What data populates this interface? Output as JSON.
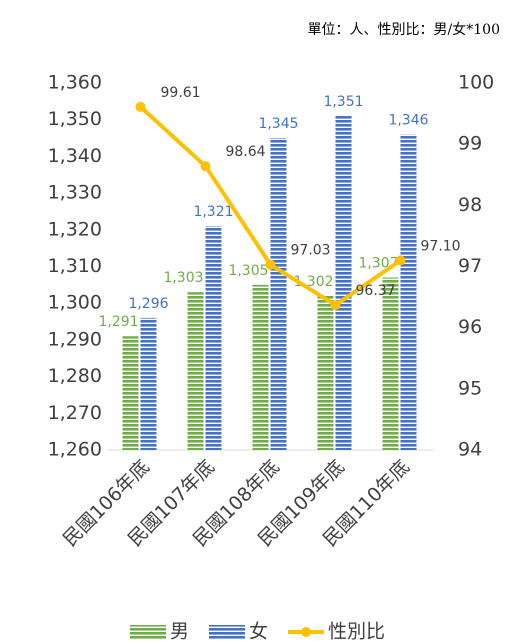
{
  "chart_data": {
    "type": "bar_line",
    "note": "單位：人、性別比：男/女*100",
    "categories": [
      "民國106年底",
      "民國107年底",
      "民國108年底",
      "民國109年底",
      "民國110年底"
    ],
    "series": [
      {
        "name": "男",
        "color": "#70ad47",
        "values": [
          1291,
          1303,
          1305,
          1302,
          1307
        ],
        "value_labels": [
          "1,291",
          "1,303",
          "1,305",
          "1,302",
          "1,307"
        ]
      },
      {
        "name": "女",
        "color": "#4472c4",
        "values": [
          1296,
          1321,
          1345,
          1351,
          1346
        ],
        "value_labels": [
          "1,296",
          "1,321",
          "1,345",
          "1,351",
          "1,346"
        ]
      },
      {
        "name": "性別比",
        "color": "#ffc000",
        "axis": "y2",
        "values": [
          99.61,
          98.64,
          97.03,
          96.37,
          97.1
        ],
        "value_labels": [
          "99.61",
          "98.64",
          "97.03",
          "96.37",
          "97.10"
        ]
      }
    ],
    "ylim": [
      1260,
      1360
    ],
    "yticks": [
      {
        "value": 1260,
        "label": "1,260"
      },
      {
        "value": 1270,
        "label": "1,270"
      },
      {
        "value": 1280,
        "label": "1,280"
      },
      {
        "value": 1290,
        "label": "1,290"
      },
      {
        "value": 1300,
        "label": "1,300"
      },
      {
        "value": 1310,
        "label": "1,310"
      },
      {
        "value": 1320,
        "label": "1,320"
      },
      {
        "value": 1330,
        "label": "1,330"
      },
      {
        "value": 1340,
        "label": "1,340"
      },
      {
        "value": 1350,
        "label": "1,350"
      },
      {
        "value": 1360,
        "label": "1,360"
      }
    ],
    "y2lim": [
      94,
      100
    ],
    "y2ticks": [
      94,
      95,
      96,
      97,
      98,
      99,
      100
    ]
  }
}
